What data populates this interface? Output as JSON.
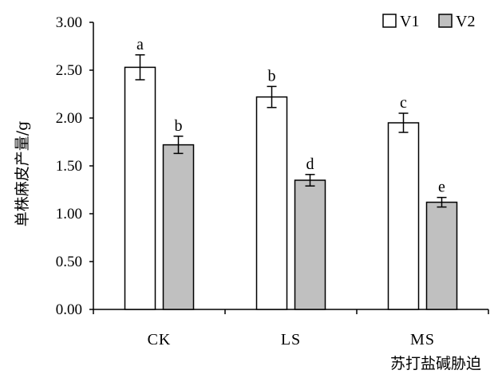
{
  "chart_data": {
    "type": "bar",
    "title": "",
    "ylabel": "单株麻皮产量/g",
    "xlabel": "苏打盐碱胁迫",
    "ylim": [
      0,
      3.0
    ],
    "yticks": [
      "0.00",
      "0.50",
      "1.00",
      "1.50",
      "2.00",
      "2.50",
      "3.00"
    ],
    "categories": [
      "CK",
      "LS",
      "MS"
    ],
    "series": [
      {
        "name": "V1",
        "values": [
          2.53,
          2.22,
          1.95
        ],
        "errors": [
          0.13,
          0.11,
          0.1
        ],
        "labels": [
          "a",
          "b",
          "c"
        ],
        "fill": "#ffffff"
      },
      {
        "name": "V2",
        "values": [
          1.72,
          1.35,
          1.12
        ],
        "errors": [
          0.09,
          0.06,
          0.05
        ],
        "labels": [
          "b",
          "d",
          "e"
        ],
        "fill": "#c0c0c0"
      }
    ],
    "grid": false,
    "legend_position": "top-right"
  }
}
